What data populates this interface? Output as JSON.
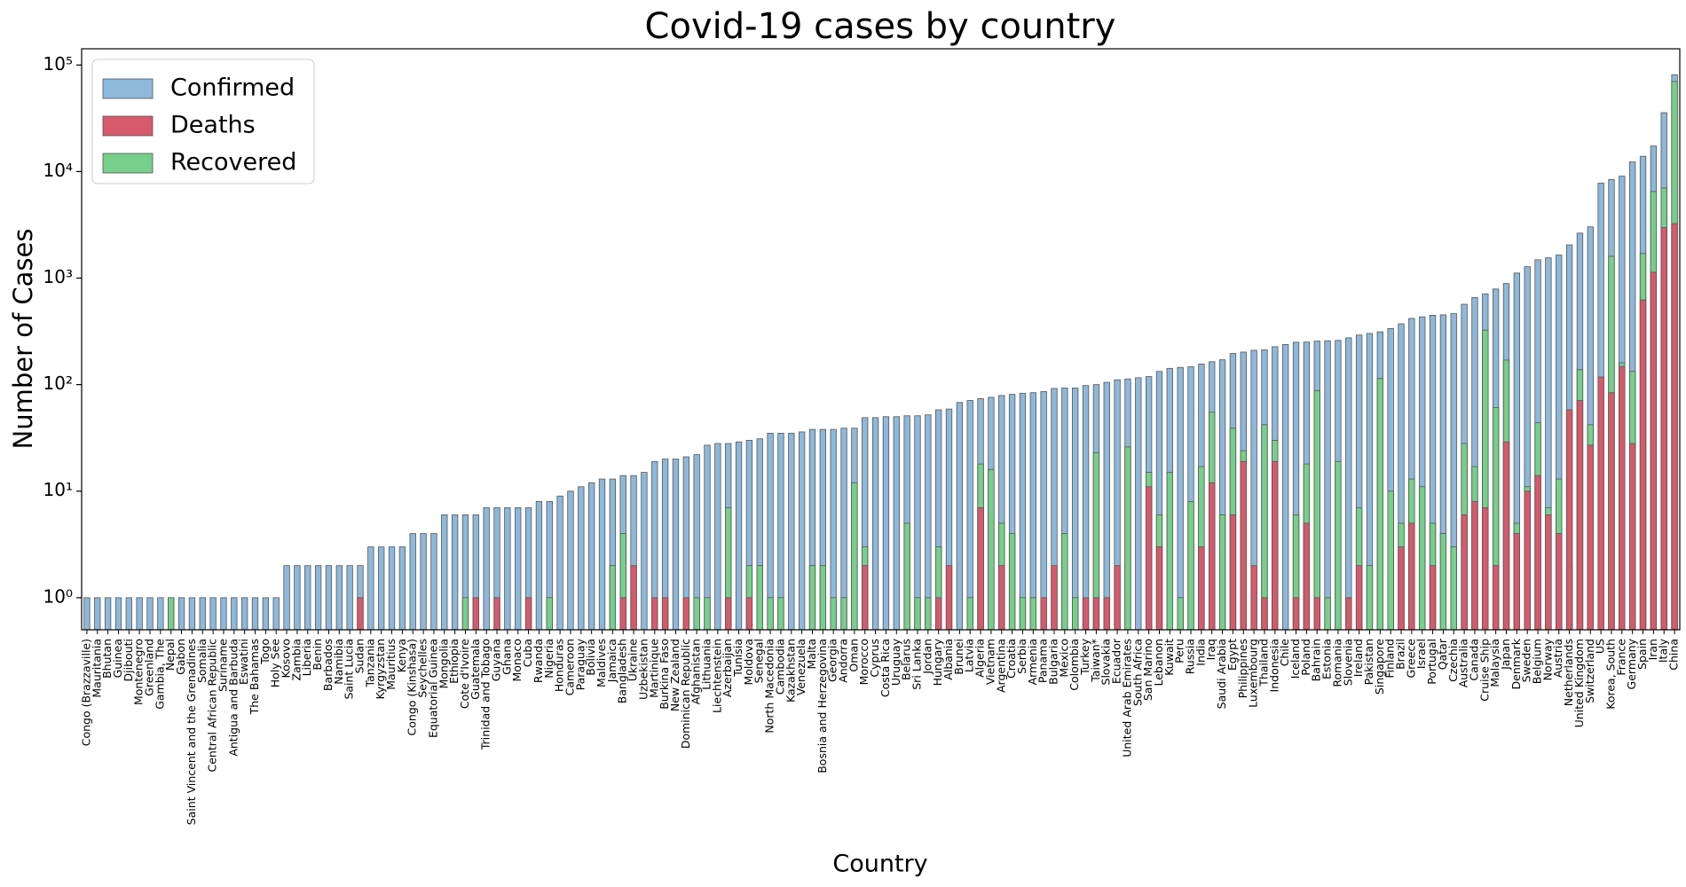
{
  "chart_data": {
    "type": "bar",
    "title": "Covid-19 cases by country",
    "x_label": "Country",
    "y_label": "Number of Cases",
    "log_scale": true,
    "legend": "upper-left",
    "categories": [
      "Congo (Brazzaville)",
      "Mauritania",
      "Bhutan",
      "Guinea",
      "Djibouti",
      "Montenegro",
      "Greenland",
      "Gambia, The",
      "Nepal",
      "Gabon",
      "Saint Vincent and the Grenadines",
      "Somalia",
      "Central African Republic",
      "Suriname",
      "Antigua and Barbuda",
      "Eswatini",
      "The Bahamas",
      "Togo",
      "Holy See",
      "Kosovo",
      "Zambia",
      "Liberia",
      "Benin",
      "Barbados",
      "Namibia",
      "Saint Lucia",
      "Sudan",
      "Tanzania",
      "Kyrgyzstan",
      "Mauritius",
      "Kenya",
      "Congo (Kinshasa)",
      "Seychelles",
      "Equatorial Guinea",
      "Mongolia",
      "Ethiopia",
      "Cote d'Ivoire",
      "Guatemala",
      "Trinidad and Tobago",
      "Guyana",
      "Ghana",
      "Monaco",
      "Cuba",
      "Rwanda",
      "Nigeria",
      "Honduras",
      "Cameroon",
      "Paraguay",
      "Bolivia",
      "Maldives",
      "Jamaica",
      "Bangladesh",
      "Ukraine",
      "Uzbekistan",
      "Martinique",
      "Burkina Faso",
      "New Zealand",
      "Dominican Republic",
      "Afghanistan",
      "Lithuania",
      "Liechtenstein",
      "Azerbaijan",
      "Tunisia",
      "Moldova",
      "Senegal",
      "North Macedonia",
      "Cambodia",
      "Kazakhstan",
      "Venezuela",
      "Malta",
      "Bosnia and Herzegovina",
      "Georgia",
      "Andorra",
      "Oman",
      "Morocco",
      "Cyprus",
      "Costa Rica",
      "Uruguay",
      "Belarus",
      "Sri Lanka",
      "Jordan",
      "Hungary",
      "Albania",
      "Brunei",
      "Latvia",
      "Algeria",
      "Vietnam",
      "Argentina",
      "Croatia",
      "Serbia",
      "Armenia",
      "Panama",
      "Bulgaria",
      "Mexico",
      "Colombia",
      "Turkey",
      "Taiwan*",
      "Slovakia",
      "Ecuador",
      "United Arab Emirates",
      "South Africa",
      "San Marino",
      "Lebanon",
      "Kuwait",
      "Peru",
      "Russia",
      "India",
      "Iraq",
      "Saudi Arabia",
      "Egypt",
      "Philippines",
      "Luxembourg",
      "Thailand",
      "Indonesia",
      "Chile",
      "Iceland",
      "Poland",
      "Bahrain",
      "Estonia",
      "Romania",
      "Slovenia",
      "Ireland",
      "Pakistan",
      "Singapore",
      "Finland",
      "Brazil",
      "Greece",
      "Israel",
      "Portugal",
      "Qatar",
      "Czechia",
      "Australia",
      "Canada",
      "Cruise Ship",
      "Malaysia",
      "Japan",
      "Denmark",
      "Sweden",
      "Belgium",
      "Norway",
      "Austria",
      "Netherlands",
      "United Kingdom",
      "Switzerland",
      "US",
      "Korea, South",
      "France",
      "Germany",
      "Spain",
      "Iran",
      "Italy",
      "China"
    ],
    "series": [
      {
        "name": "Confirmed",
        "color": "#8db8da",
        "values": [
          1,
          1,
          1,
          1,
          1,
          1,
          1,
          1,
          1,
          1,
          1,
          1,
          1,
          1,
          1,
          1,
          1,
          1,
          1,
          2,
          2,
          2,
          2,
          2,
          2,
          2,
          2,
          3,
          3,
          3,
          3,
          4,
          4,
          4,
          6,
          6,
          6,
          6,
          7,
          7,
          7,
          7,
          7,
          8,
          8,
          9,
          10,
          11,
          12,
          13,
          13,
          14,
          14,
          15,
          19,
          20,
          20,
          21,
          22,
          27,
          28,
          28,
          29,
          30,
          31,
          35,
          35,
          35,
          36,
          38,
          38,
          38,
          39,
          39,
          49,
          49,
          50,
          50,
          51,
          51,
          52,
          58,
          59,
          68,
          71,
          74,
          76,
          79,
          81,
          83,
          84,
          86,
          92,
          93,
          93,
          98,
          100,
          105,
          111,
          113,
          116,
          119,
          133,
          142,
          145,
          147,
          156,
          164,
          171,
          196,
          202,
          210,
          212,
          227,
          238,
          250,
          251,
          256,
          258,
          260,
          275,
          292,
          302,
          313,
          336,
          372,
          418,
          433,
          448,
          452,
          464,
          568,
          657,
          712,
          790,
          889,
          1115,
          1279,
          1486,
          1550,
          1646,
          2051,
          2642,
          3028,
          7786,
          8413,
          9052,
          12327,
          13910,
          17361,
          35713,
          81102
        ]
      },
      {
        "name": "Deaths",
        "color": "#d65a6b",
        "values": [
          0,
          0,
          0,
          0,
          0,
          0,
          0,
          0,
          0,
          0,
          0,
          0,
          0,
          0,
          0,
          0,
          0,
          0,
          0,
          0,
          0,
          0,
          0,
          0,
          0,
          0,
          1,
          0,
          0,
          0,
          0,
          0,
          0,
          0,
          0,
          0,
          0,
          1,
          0,
          1,
          0,
          0,
          1,
          0,
          0,
          0,
          0,
          0,
          0,
          0,
          0,
          1,
          2,
          0,
          1,
          1,
          0,
          1,
          0,
          0,
          0,
          1,
          0,
          1,
          0,
          0,
          0,
          0,
          0,
          0,
          0,
          0,
          0,
          0,
          2,
          0,
          0,
          0,
          0,
          0,
          0,
          1,
          2,
          0,
          0,
          7,
          0,
          2,
          0,
          0,
          0,
          1,
          2,
          0,
          0,
          1,
          1,
          1,
          2,
          0,
          0,
          11,
          3,
          0,
          0,
          0,
          3,
          12,
          0,
          6,
          19,
          2,
          1,
          19,
          0,
          1,
          5,
          1,
          0,
          0,
          1,
          2,
          0,
          0,
          0,
          3,
          5,
          0,
          2,
          0,
          0,
          6,
          8,
          7,
          2,
          29,
          4,
          10,
          14,
          6,
          4,
          58,
          71,
          27,
          118,
          84,
          148,
          28,
          623,
          1135,
          2978,
          3249
        ]
      },
      {
        "name": "Recovered",
        "color": "#76cf8a",
        "values": [
          0,
          0,
          0,
          0,
          0,
          0,
          0,
          0,
          1,
          0,
          0,
          0,
          0,
          0,
          0,
          0,
          0,
          0,
          0,
          0,
          0,
          0,
          0,
          0,
          0,
          0,
          0,
          0,
          0,
          0,
          0,
          0,
          0,
          0,
          0,
          0,
          1,
          0,
          0,
          0,
          0,
          0,
          0,
          0,
          1,
          0,
          0,
          0,
          0,
          0,
          2,
          4,
          0,
          0,
          0,
          0,
          0,
          0,
          1,
          1,
          0,
          7,
          0,
          2,
          2,
          1,
          1,
          0,
          0,
          2,
          2,
          1,
          1,
          12,
          3,
          0,
          0,
          0,
          5,
          1,
          1,
          3,
          0,
          0,
          1,
          18,
          16,
          5,
          4,
          1,
          1,
          0,
          0,
          4,
          1,
          0,
          23,
          0,
          0,
          26,
          0,
          15,
          6,
          15,
          1,
          8,
          17,
          55,
          6,
          39,
          24,
          0,
          42,
          30,
          0,
          6,
          18,
          88,
          1,
          19,
          0,
          7,
          2,
          114,
          10,
          5,
          13,
          11,
          5,
          4,
          3,
          28,
          17,
          325,
          61,
          170,
          5,
          11,
          44,
          7,
          13,
          2,
          138,
          42,
          0,
          1600,
          160,
          133,
          1700,
          6500,
          7000,
          70000
        ]
      }
    ],
    "ylim": [
      0.5,
      142000
    ],
    "yticks": [
      {
        "value": 1,
        "label": "10⁰"
      },
      {
        "value": 10,
        "label": "10¹"
      },
      {
        "value": 100,
        "label": "10²"
      },
      {
        "value": 1000,
        "label": "10³"
      },
      {
        "value": 10000,
        "label": "10⁴"
      },
      {
        "value": 100000,
        "label": "10⁵"
      }
    ]
  }
}
